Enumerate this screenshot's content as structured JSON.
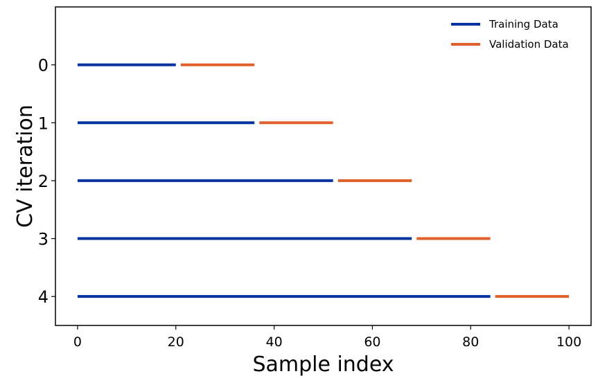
{
  "chart_data": {
    "type": "line",
    "title": "",
    "xlabel": "Sample index",
    "ylabel": "CV iteration",
    "xlim": [
      -4.5,
      104.5
    ],
    "ylim": [
      -1,
      4.5
    ],
    "y_inverted": true,
    "grid": false,
    "legend_placement": "top-right",
    "xticks": [
      0,
      20,
      40,
      60,
      80,
      100
    ],
    "xtick_labels": [
      "0",
      "20",
      "40",
      "60",
      "80",
      "100"
    ],
    "yticks": [
      0,
      1,
      2,
      3,
      4
    ],
    "ytick_labels": [
      "0",
      "1",
      "2",
      "3",
      "4"
    ],
    "series": [
      {
        "name": "Training Data",
        "color": "#0033a0",
        "segments": [
          {
            "iteration": 0,
            "start": 0,
            "end": 20
          },
          {
            "iteration": 1,
            "start": 0,
            "end": 36
          },
          {
            "iteration": 2,
            "start": 0,
            "end": 52
          },
          {
            "iteration": 3,
            "start": 0,
            "end": 68
          },
          {
            "iteration": 4,
            "start": 0,
            "end": 84
          }
        ]
      },
      {
        "name": "Validation Data",
        "color": "#e0602b",
        "segments": [
          {
            "iteration": 0,
            "start": 21,
            "end": 36
          },
          {
            "iteration": 1,
            "start": 37,
            "end": 52
          },
          {
            "iteration": 2,
            "start": 53,
            "end": 68
          },
          {
            "iteration": 3,
            "start": 69,
            "end": 84
          },
          {
            "iteration": 4,
            "start": 85,
            "end": 100
          }
        ]
      }
    ]
  }
}
